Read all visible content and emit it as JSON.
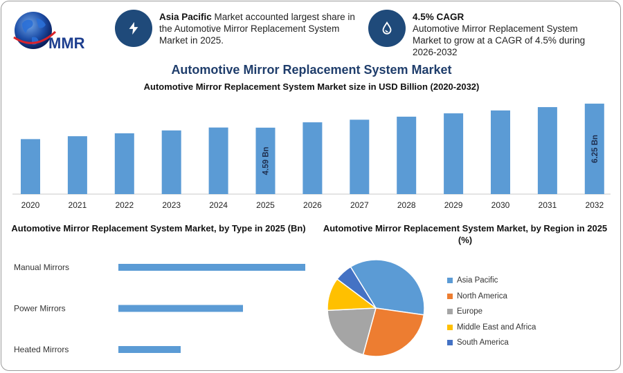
{
  "logo": {
    "text": "MMR",
    "icon": "globe-icon"
  },
  "kpis": [
    {
      "icon": "lightning-icon",
      "bold": "Asia Pacific",
      "text": " Market accounted largest share in the Automotive Mirror Replacement System Market in 2025."
    },
    {
      "icon": "drop-icon",
      "bold": "4.5% CAGR",
      "text": "Automotive Mirror Replacement System Market to grow at a CAGR of 4.5% during 2026-2032"
    }
  ],
  "colors": {
    "accent": "#1f4a7a",
    "title": "#1f3d6b",
    "bar": "#5b9bd5"
  },
  "chart_data": [
    {
      "type": "bar",
      "title": "Automotive Mirror Replacement System Market",
      "subtitle": "Automotive Mirror Replacement System Market size in USD Billion (2020-2032)",
      "categories": [
        "2020",
        "2021",
        "2022",
        "2023",
        "2024",
        "2025",
        "2026",
        "2027",
        "2028",
        "2029",
        "2030",
        "2031",
        "2032"
      ],
      "values": [
        3.8,
        4.0,
        4.2,
        4.4,
        4.6,
        4.59,
        4.96,
        5.14,
        5.35,
        5.58,
        5.78,
        6.01,
        6.25
      ],
      "data_labels": [
        {
          "category": "2025",
          "label": "4.59 Bn"
        },
        {
          "category": "2032",
          "label": "6.25 Bn"
        }
      ],
      "ylim": [
        0,
        6.3
      ]
    },
    {
      "type": "bar",
      "orientation": "horizontal",
      "title": "Automotive Mirror Replacement System Market, by Type in 2025 (Bn)",
      "categories": [
        "Manual Mirrors",
        "Power Mirrors",
        "Heated Mirrors"
      ],
      "values": [
        2.7,
        1.8,
        0.9
      ],
      "xlim": [
        0,
        2.7
      ]
    },
    {
      "type": "pie",
      "title": "Automotive Mirror Replacement System Market, by Region in 2025 (%)",
      "labels": [
        "Asia Pacific",
        "North America",
        "Europe",
        "Middle East and Africa",
        "South America"
      ],
      "values": [
        36,
        27,
        20,
        11,
        6
      ],
      "colors": [
        "#5b9bd5",
        "#ed7d31",
        "#a5a5a5",
        "#ffc000",
        "#4472c4"
      ],
      "legend": "right"
    }
  ]
}
